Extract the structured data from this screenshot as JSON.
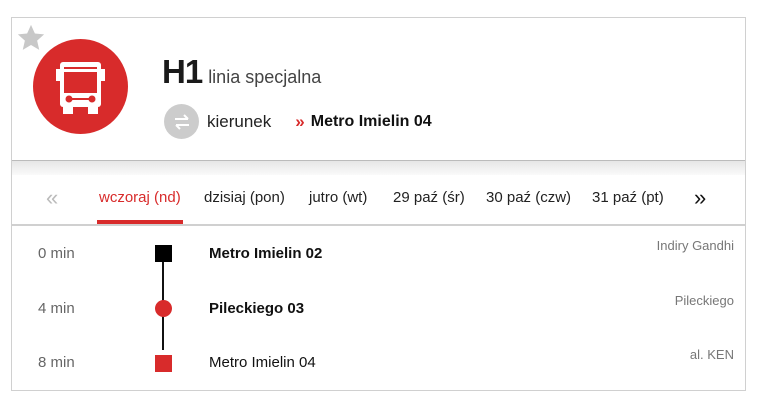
{
  "header": {
    "line": "H1",
    "line_type": "linia specjalna",
    "direction_label": "kierunek",
    "direction_value": "Metro Imielin 04",
    "icons": [
      "star-icon",
      "bus-icon",
      "swap-icon"
    ]
  },
  "colors": {
    "accent": "#d82b2b",
    "gray": "#cccccc"
  },
  "tabs": {
    "prev": "«",
    "next": "»",
    "items": [
      {
        "label": "wczoraj (nd)",
        "active": true
      },
      {
        "label": "dzisiaj (pon)"
      },
      {
        "label": "jutro (wt)"
      },
      {
        "label": "29 paź (śr)"
      },
      {
        "label": "30 paź (czw)"
      },
      {
        "label": "31 paź (pt)"
      }
    ]
  },
  "stops": [
    {
      "time": "0 min",
      "name": "Metro Imielin 02",
      "street": "Indiry Gandhi",
      "marker": "square-black"
    },
    {
      "time": "4 min",
      "name": "Pileckiego 03",
      "street": "Pileckiego",
      "marker": "circle-red"
    },
    {
      "time": "8 min",
      "name": "Metro Imielin 04",
      "street": "al. KEN",
      "marker": "square-red"
    }
  ]
}
